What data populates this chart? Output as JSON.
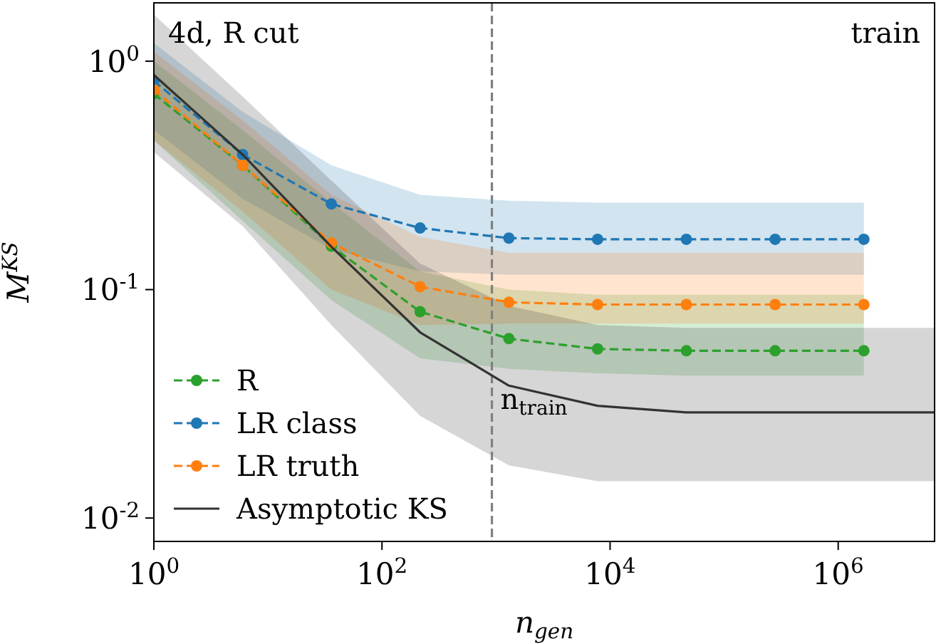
{
  "chart_data": {
    "type": "line",
    "xlabel": "n$_{gen}$",
    "ylabel": "M$^{KS}$",
    "log": "xy",
    "xlim": [
      1,
      7000000
    ],
    "ylim": [
      0.0079,
      1.8
    ],
    "xticks": [
      {
        "value": 1,
        "label": "10$^{0}$"
      },
      {
        "value": 100,
        "label": "10$^{2}$"
      },
      {
        "value": 10000,
        "label": "10$^{4}$"
      },
      {
        "value": 1000000,
        "label": "10$^{6}$"
      }
    ],
    "yticks": [
      {
        "value": 1,
        "label": "10$^{0}$"
      },
      {
        "value": 0.1,
        "label": "10$^{-1}$"
      },
      {
        "value": 0.01,
        "label": "10$^{-2}$"
      }
    ],
    "legend": "bottom left",
    "line_style": "dashed",
    "marker": "circle",
    "annotations": [
      "4d, R cut",
      "train"
    ],
    "ref_lines": [
      {
        "axis": "x",
        "value": 920,
        "label": "n$_{train}$",
        "color": "#808080",
        "line_style": "dashed"
      }
    ],
    "x": [
      1,
      6,
      36,
      216,
      1296,
      7776,
      46656,
      279936,
      1679616
    ],
    "series": [
      {
        "name": "R",
        "color": "#2ca02c",
        "values": [
          0.72,
          0.35,
          0.155,
          0.08,
          0.061,
          0.055,
          0.054,
          0.054,
          0.054
        ],
        "lower": [
          0.45,
          0.2,
          0.09,
          0.05,
          0.045,
          0.043,
          0.042,
          0.042,
          0.042
        ],
        "upper": [
          1.0,
          0.5,
          0.24,
          0.12,
          0.1,
          0.095,
          0.095,
          0.095,
          0.095
        ]
      },
      {
        "name": "LR class",
        "color": "#1f77b4",
        "values": [
          0.82,
          0.39,
          0.237,
          0.186,
          0.168,
          0.166,
          0.166,
          0.166,
          0.166
        ],
        "lower": [
          0.5,
          0.25,
          0.15,
          0.12,
          0.116,
          0.116,
          0.116,
          0.116,
          0.116
        ],
        "upper": [
          1.2,
          0.6,
          0.35,
          0.26,
          0.245,
          0.24,
          0.24,
          0.24,
          0.24
        ]
      },
      {
        "name": "LR truth",
        "color": "#ff7f0e",
        "values": [
          0.75,
          0.35,
          0.16,
          0.103,
          0.088,
          0.086,
          0.086,
          0.086,
          0.086
        ],
        "lower": [
          0.45,
          0.22,
          0.1,
          0.07,
          0.071,
          0.071,
          0.071,
          0.071,
          0.071
        ],
        "upper": [
          1.1,
          0.55,
          0.26,
          0.17,
          0.145,
          0.145,
          0.145,
          0.145,
          0.145
        ]
      },
      {
        "name": "Asymptotic KS",
        "type": "line",
        "line_style": "solid",
        "marker": "none",
        "color": "#333333",
        "x": [
          1,
          6,
          36,
          216,
          1296,
          7776,
          46656,
          279936,
          1679616,
          7000000
        ],
        "values": [
          0.87,
          0.39,
          0.154,
          0.065,
          0.038,
          0.031,
          0.029,
          0.029,
          0.029,
          0.029
        ],
        "lower": [
          0.4,
          0.19,
          0.07,
          0.028,
          0.017,
          0.0145,
          0.0145,
          0.0145,
          0.0145,
          0.0145
        ],
        "upper": [
          1.6,
          0.7,
          0.3,
          0.13,
          0.085,
          0.07,
          0.068,
          0.068,
          0.068,
          0.068
        ]
      }
    ]
  }
}
